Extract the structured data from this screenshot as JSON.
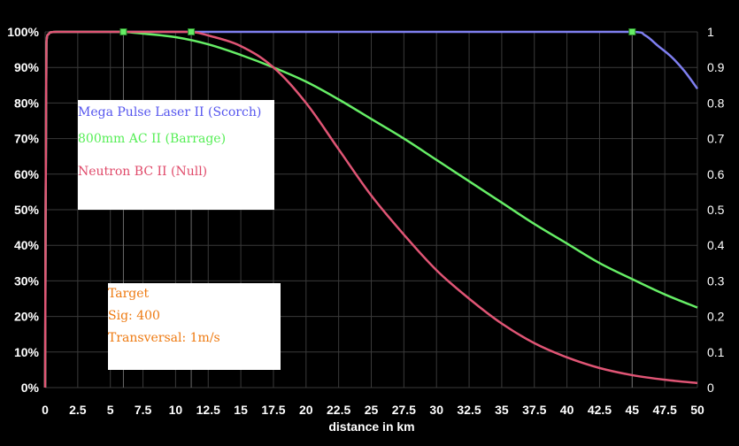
{
  "chart_data": {
    "type": "line",
    "xlabel": "distance in km",
    "xlim": [
      0,
      50
    ],
    "ylim": [
      0,
      1
    ],
    "x_ticks": [
      "0",
      "2.5",
      "5",
      "7.5",
      "10",
      "12.5",
      "15",
      "17.5",
      "20",
      "22.5",
      "25",
      "27.5",
      "30",
      "32.5",
      "35",
      "37.5",
      "40",
      "42.5",
      "45",
      "47.5",
      "50"
    ],
    "y_ticks_left": [
      "0%",
      "10%",
      "20%",
      "30%",
      "40%",
      "50%",
      "60%",
      "70%",
      "80%",
      "90%",
      "100%"
    ],
    "y_ticks_right": [
      "0",
      "0.1",
      "0.2",
      "0.3",
      "0.4",
      "0.5",
      "0.6",
      "0.7",
      "0.8",
      "0.9",
      "1"
    ],
    "grid": true,
    "background": "#000000",
    "vertical_markers_km": [
      6,
      11.2,
      45
    ],
    "series": [
      {
        "name": "Mega Pulse Laser II (Scorch)",
        "color": "#7f7ff0",
        "x": [
          0,
          0.1,
          0.3,
          0.5,
          1,
          2,
          5,
          10,
          20,
          30,
          40,
          45,
          46,
          47,
          48,
          49,
          50
        ],
        "values": [
          0,
          0.97,
          0.995,
          0.999,
          1,
          1,
          1,
          1,
          1,
          1,
          1,
          1,
          0.99,
          0.96,
          0.93,
          0.89,
          0.84
        ]
      },
      {
        "name": "800mm AC II (Barrage)",
        "color": "#66ee66",
        "x": [
          0,
          0.1,
          0.3,
          0.5,
          1,
          2,
          5,
          6,
          7.5,
          10,
          12.5,
          15,
          17.5,
          20,
          22.5,
          25,
          27.5,
          30,
          32.5,
          35,
          37.5,
          40,
          42.5,
          45,
          47.5,
          50
        ],
        "values": [
          0,
          0.97,
          0.995,
          0.999,
          1,
          1,
          1,
          1,
          0.995,
          0.985,
          0.965,
          0.935,
          0.9,
          0.86,
          0.81,
          0.755,
          0.7,
          0.64,
          0.58,
          0.52,
          0.46,
          0.405,
          0.35,
          0.305,
          0.262,
          0.225
        ]
      },
      {
        "name": "Neutron BC II (Null)",
        "color": "#e05575",
        "x": [
          0,
          0.1,
          0.3,
          0.5,
          1,
          2,
          5,
          10,
          11.2,
          12.5,
          15,
          17.5,
          20,
          22.5,
          25,
          27.5,
          30,
          32.5,
          35,
          37.5,
          40,
          42.5,
          45,
          47.5,
          50
        ],
        "values": [
          0,
          0.97,
          0.995,
          0.999,
          1,
          1,
          1,
          1,
          1,
          0.99,
          0.96,
          0.9,
          0.8,
          0.67,
          0.54,
          0.43,
          0.33,
          0.25,
          0.18,
          0.125,
          0.085,
          0.055,
          0.035,
          0.022,
          0.013
        ]
      }
    ],
    "markers": [
      {
        "x": 6,
        "y": 1,
        "color": "#66ee66"
      },
      {
        "x": 11.2,
        "y": 1,
        "color": "#66ee66"
      },
      {
        "x": 45,
        "y": 1,
        "color": "#66ee66"
      }
    ]
  },
  "legend_box": {
    "items": [
      {
        "label": "Mega Pulse Laser II (Scorch)",
        "color": "#5555ee"
      },
      {
        "label": "800mm AC II (Barrage)",
        "color": "#55ee55"
      },
      {
        "label": "Neutron BC II (Null)",
        "color": "#e04a6a"
      }
    ]
  },
  "target_box": {
    "color": "#ee7a11",
    "lines": [
      "Target",
      "Sig: 400",
      "Transversal: 1m/s"
    ]
  }
}
